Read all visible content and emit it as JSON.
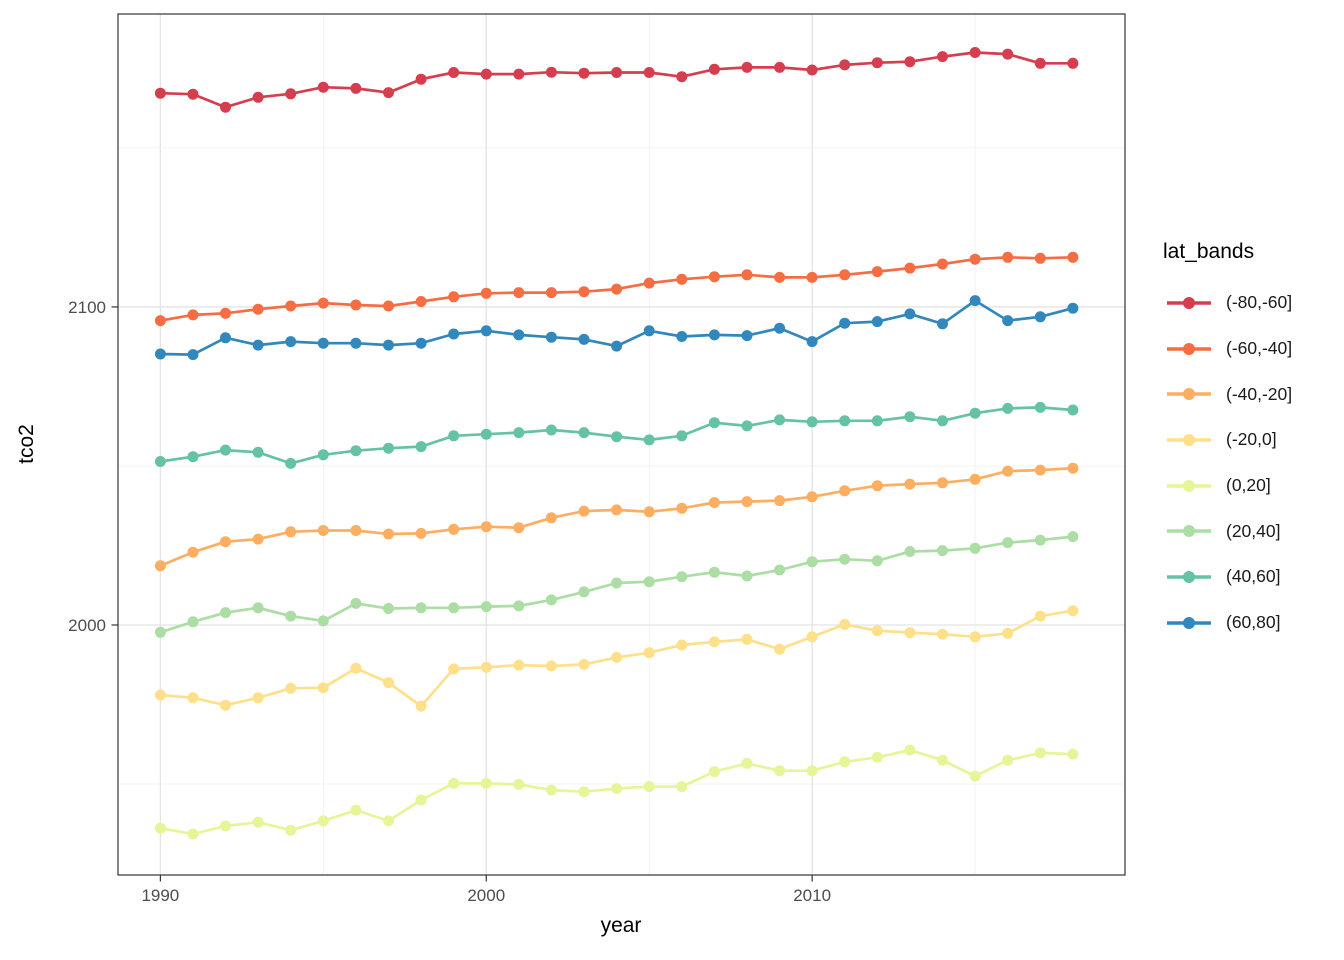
{
  "chart_data": {
    "type": "line",
    "title": "",
    "xlabel": "year",
    "ylabel": "tco2",
    "legend": {
      "title": "lat_bands",
      "position": "right"
    },
    "grid": true,
    "xlim": [
      1988.7,
      2019.6
    ],
    "ylim": [
      1921.4,
      2192.1
    ],
    "x_major_ticks": [
      1990,
      2000,
      2010
    ],
    "x_tick_labels": [
      "1990",
      "2000",
      "2010"
    ],
    "x_minor_ticks": [
      1995,
      2005,
      2015
    ],
    "y_major_ticks": [
      2000,
      2100
    ],
    "y_tick_labels": [
      "2000",
      "2100"
    ],
    "y_minor_ticks": [
      1950,
      2050,
      2150
    ],
    "years": [
      1990,
      1991,
      1992,
      1993,
      1994,
      1995,
      1996,
      1997,
      1998,
      1999,
      2000,
      2001,
      2002,
      2003,
      2004,
      2005,
      2006,
      2007,
      2008,
      2009,
      2010,
      2011,
      2012,
      2013,
      2014,
      2015,
      2016,
      2017,
      2018
    ],
    "series": [
      {
        "name": "(-80,-60]",
        "color": "#d53e4f",
        "values": [
          2167.2,
          2166.9,
          2162.8,
          2165.9,
          2167.0,
          2169.1,
          2168.7,
          2167.4,
          2171.6,
          2173.7,
          2173.2,
          2173.2,
          2173.8,
          2173.5,
          2173.7,
          2173.7,
          2172.4,
          2174.7,
          2175.3,
          2175.3,
          2174.5,
          2176.1,
          2176.8,
          2177.1,
          2178.7,
          2180.0,
          2179.5,
          2176.6,
          2176.6
        ]
      },
      {
        "name": "(-60,-40]",
        "color": "#f46d43",
        "values": [
          2095.7,
          2097.5,
          2098.0,
          2099.3,
          2100.3,
          2101.2,
          2100.6,
          2100.3,
          2101.7,
          2103.2,
          2104.3,
          2104.5,
          2104.5,
          2104.8,
          2105.6,
          2107.5,
          2108.7,
          2109.5,
          2110.1,
          2109.3,
          2109.3,
          2110.1,
          2111.1,
          2112.2,
          2113.5,
          2115.0,
          2115.6,
          2115.3,
          2115.6
        ]
      },
      {
        "name": "(-40,-20]",
        "color": "#fdae61",
        "values": [
          2018.6,
          2022.9,
          2026.2,
          2027.0,
          2029.3,
          2029.7,
          2029.7,
          2028.6,
          2028.8,
          2030.1,
          2030.9,
          2030.6,
          2033.7,
          2035.8,
          2036.2,
          2035.6,
          2036.7,
          2038.5,
          2038.8,
          2039.1,
          2040.3,
          2042.2,
          2043.8,
          2044.3,
          2044.7,
          2045.8,
          2048.4,
          2048.7,
          2049.3
        ]
      },
      {
        "name": "(-20,0]",
        "color": "#fee08b",
        "values": [
          1978.0,
          1977.1,
          1974.8,
          1977.1,
          1980.1,
          1980.3,
          1986.4,
          1981.9,
          1974.5,
          1986.2,
          1986.7,
          1987.4,
          1987.1,
          1987.6,
          1989.8,
          1991.3,
          1993.7,
          1994.7,
          1995.5,
          1992.4,
          1996.3,
          2000.2,
          1998.2,
          1997.6,
          1997.1,
          1996.3,
          1997.4,
          2002.8,
          2004.5
        ]
      },
      {
        "name": "(0,20]",
        "color": "#e6f598",
        "values": [
          1936.1,
          1934.3,
          1936.8,
          1938.0,
          1935.5,
          1938.4,
          1941.8,
          1938.4,
          1945.0,
          1950.2,
          1950.2,
          1949.9,
          1948.1,
          1947.6,
          1948.6,
          1949.2,
          1949.2,
          1953.9,
          1956.5,
          1954.2,
          1954.2,
          1957.0,
          1958.4,
          1960.7,
          1957.5,
          1952.5,
          1957.5,
          1959.8,
          1959.4
        ]
      },
      {
        "name": "(20,40]",
        "color": "#abdda4",
        "values": [
          1997.7,
          2001.0,
          2003.9,
          2005.4,
          2002.8,
          2001.3,
          2006.8,
          2005.2,
          2005.4,
          2005.4,
          2005.8,
          2006.0,
          2007.9,
          2010.4,
          2013.2,
          2013.6,
          2015.2,
          2016.6,
          2015.4,
          2017.3,
          2019.9,
          2020.7,
          2020.2,
          2023.1,
          2023.4,
          2024.1,
          2025.9,
          2026.7,
          2027.8
        ]
      },
      {
        "name": "(40,60]",
        "color": "#66c2a5",
        "values": [
          2051.4,
          2052.9,
          2055.0,
          2054.3,
          2050.8,
          2053.5,
          2054.8,
          2055.6,
          2056.1,
          2059.5,
          2060.0,
          2060.5,
          2061.3,
          2060.5,
          2059.2,
          2058.2,
          2059.5,
          2063.6,
          2062.6,
          2064.5,
          2063.9,
          2064.2,
          2064.2,
          2065.5,
          2064.2,
          2066.6,
          2068.1,
          2068.4,
          2067.6
        ]
      },
      {
        "name": "(60,80]",
        "color": "#3288bd",
        "values": [
          2085.2,
          2085.0,
          2090.3,
          2088.0,
          2089.1,
          2088.6,
          2088.6,
          2088.0,
          2088.6,
          2091.5,
          2092.5,
          2091.2,
          2090.5,
          2089.8,
          2087.7,
          2092.5,
          2090.7,
          2091.2,
          2091.0,
          2093.3,
          2089.1,
          2094.9,
          2095.4,
          2097.8,
          2094.7,
          2102.0,
          2095.7,
          2096.9,
          2099.6
        ]
      }
    ],
    "style": {
      "panel_border_color": "#333333",
      "grid_major_color": "#e4e4e4",
      "grid_minor_color": "#efefef",
      "tick_label_color": "#4d4d4d"
    }
  }
}
